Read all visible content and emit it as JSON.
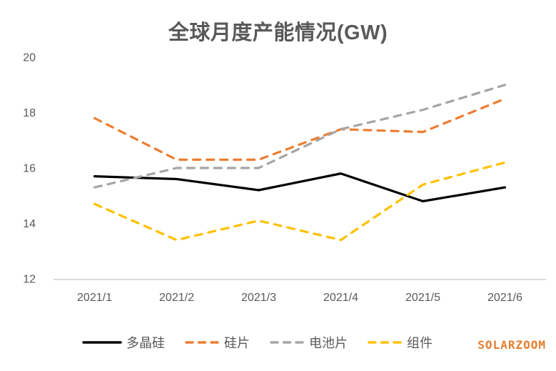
{
  "chart_data": {
    "type": "line",
    "title": "全球月度产能情况(GW)",
    "categories": [
      "2021/1",
      "2021/2",
      "2021/3",
      "2021/4",
      "2021/5",
      "2021/6"
    ],
    "series": [
      {
        "name": "多晶硅",
        "id": "polysilicon",
        "color": "#000000",
        "dashed": false,
        "values": [
          15.7,
          15.6,
          15.2,
          15.8,
          14.8,
          15.3
        ]
      },
      {
        "name": "硅片",
        "id": "wafer",
        "color": "#ED7D31",
        "dashed": true,
        "values": [
          17.8,
          16.3,
          16.3,
          17.4,
          17.3,
          18.5
        ]
      },
      {
        "name": "电池片",
        "id": "cell",
        "color": "#A5A5A5",
        "dashed": true,
        "values": [
          15.3,
          16.0,
          16.0,
          17.4,
          18.1,
          19.0
        ]
      },
      {
        "name": "组件",
        "id": "module",
        "color": "#FFC000",
        "dashed": true,
        "values": [
          14.7,
          13.4,
          14.1,
          13.4,
          15.4,
          16.2
        ]
      }
    ],
    "ylim": [
      12,
      20
    ],
    "yticks": [
      20,
      18,
      16,
      14,
      12
    ],
    "grid": false,
    "legend_position": "bottom",
    "axis_line_color": "#D9D9D9",
    "label_color": "#595959"
  },
  "watermark": {
    "text": "SOLARZOOM",
    "color": "#E87D2E"
  }
}
